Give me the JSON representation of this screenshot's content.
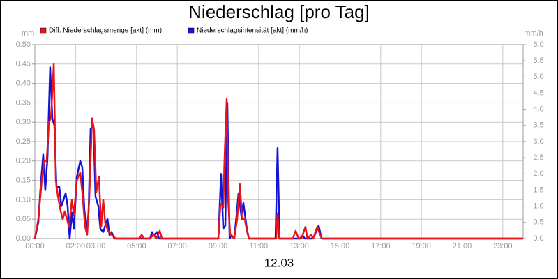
{
  "chart_data": {
    "type": "line",
    "title": "Niederschlag [pro Tag]",
    "x_label": "12.03",
    "y_label": "mm",
    "y2_label": "mm/h",
    "grid": true,
    "xlim": [
      0,
      24
    ],
    "xticks": [
      {
        "value": 0,
        "label": "00:00"
      },
      {
        "value": 2,
        "label": "02:00"
      },
      {
        "value": 3,
        "label": "03:00"
      },
      {
        "value": 5,
        "label": "05:00"
      },
      {
        "value": 7,
        "label": "07:00"
      },
      {
        "value": 9,
        "label": "09:00"
      },
      {
        "value": 11,
        "label": "11:00"
      },
      {
        "value": 13,
        "label": "13:00"
      },
      {
        "value": 15,
        "label": "15:00"
      },
      {
        "value": 17,
        "label": "17:00"
      },
      {
        "value": 19,
        "label": "19:00"
      },
      {
        "value": 21,
        "label": "21:00"
      },
      {
        "value": 23,
        "label": "23:00"
      }
    ],
    "ylim": [
      0,
      0.5
    ],
    "yticks": [
      {
        "value": 0,
        "label": "0.00"
      },
      {
        "value": 0.05,
        "label": "0.05"
      },
      {
        "value": 0.1,
        "label": "0.10"
      },
      {
        "value": 0.15,
        "label": "0.15"
      },
      {
        "value": 0.2,
        "label": "0.20"
      },
      {
        "value": 0.25,
        "label": "0.25"
      },
      {
        "value": 0.3,
        "label": "0.30"
      },
      {
        "value": 0.35,
        "label": "0.35"
      },
      {
        "value": 0.4,
        "label": "0.40"
      },
      {
        "value": 0.45,
        "label": "0.45"
      },
      {
        "value": 0.5,
        "label": "0.50"
      }
    ],
    "y2lim": [
      0,
      6
    ],
    "y2ticks": [
      {
        "value": 0,
        "label": "0.0"
      },
      0.5,
      {
        "value": 1,
        "label": "1.0"
      },
      1.5,
      {
        "value": 2,
        "label": "2.0"
      },
      2.5,
      {
        "value": 3,
        "label": "3.0"
      },
      3.5,
      {
        "value": 4,
        "label": "4.0"
      },
      4.5,
      {
        "value": 5,
        "label": "5.0"
      },
      5.5,
      {
        "value": 6,
        "label": "6.0"
      }
    ],
    "series": [
      {
        "name": "Diff. Niederschlagsmenge [akt] (mm)",
        "color": "#e8141c",
        "x": [
          0,
          0.17,
          0.34,
          0.45,
          0.58,
          0.69,
          0.79,
          0.93,
          1.03,
          1.13,
          1.27,
          1.37,
          1.47,
          1.58,
          1.68,
          1.82,
          1.92,
          2.06,
          2.23,
          2.33,
          2.47,
          2.57,
          2.67,
          2.81,
          2.91,
          3.02,
          3.15,
          3.26,
          3.36,
          3.46,
          3.6,
          3.77,
          3.98,
          5.14,
          5.25,
          5.35,
          5.66,
          5.83,
          5.97,
          6.14,
          6.24,
          9.02,
          9.12,
          9.26,
          9.32,
          9.43,
          9.5,
          9.6,
          9.8,
          9.94,
          10.08,
          10.18,
          10.32,
          10.42,
          10.52,
          11.86,
          11.93,
          12.0,
          12.68,
          12.82,
          12.96,
          13.1,
          13.3,
          13.4,
          13.58,
          13.68,
          13.88,
          14.02,
          14.12,
          24
        ],
        "values": [
          0,
          0.05,
          0.15,
          0.2,
          0.2,
          0.3,
          0.31,
          0.45,
          0.15,
          0.11,
          0.07,
          0.05,
          0.07,
          0.05,
          0.03,
          0.1,
          0.06,
          0.15,
          0.17,
          0.12,
          0.03,
          0.01,
          0.1,
          0.31,
          0.28,
          0.12,
          0.16,
          0.03,
          0.1,
          0.04,
          0.02,
          0.01,
          0,
          0,
          0.01,
          0,
          0,
          0.01,
          0,
          0.02,
          0,
          0,
          0.09,
          0.08,
          0.2,
          0.36,
          0.1,
          0.01,
          0,
          0.05,
          0.14,
          0.05,
          0.05,
          0.02,
          0,
          0,
          0.065,
          0,
          0,
          0.02,
          0,
          0,
          0.03,
          0,
          0.01,
          0,
          0.03,
          0.01,
          0,
          0
        ]
      },
      {
        "name": "Niederschlagsintensität [akt] (mm/h)",
        "color": "#1414d8",
        "axis": "y2",
        "x": [
          0,
          0.17,
          0.27,
          0.41,
          0.51,
          0.62,
          0.75,
          0.86,
          0.96,
          1.06,
          1.2,
          1.3,
          1.41,
          1.51,
          1.61,
          1.71,
          1.82,
          1.92,
          2.06,
          2.23,
          2.33,
          2.43,
          2.54,
          2.64,
          2.74,
          2.88,
          2.98,
          3.12,
          3.22,
          3.36,
          3.46,
          3.57,
          3.67,
          3.77,
          3.91,
          5.66,
          5.76,
          5.86,
          6.0,
          6.1,
          9.02,
          9.15,
          9.26,
          9.36,
          9.46,
          9.57,
          9.67,
          9.8,
          9.91,
          10.01,
          10.15,
          10.25,
          10.42,
          10.52,
          11.83,
          11.93,
          12.03,
          13.03,
          13.16,
          13.27,
          13.61,
          13.75,
          13.95,
          14.09,
          24
        ],
        "values": [
          0,
          0.5,
          1.5,
          2.6,
          1.5,
          2.5,
          5.3,
          3.7,
          3.5,
          1.6,
          1.6,
          1.0,
          1.2,
          1.4,
          1.0,
          0,
          0.8,
          0.3,
          1.9,
          2.4,
          2.2,
          0.9,
          0.3,
          0.8,
          3.4,
          3.5,
          1.3,
          1.0,
          0.3,
          0.2,
          0.4,
          0.6,
          0.1,
          0.2,
          0,
          0,
          0.2,
          0.1,
          0.2,
          0,
          0,
          2.0,
          0.3,
          0.4,
          4.2,
          0,
          0.1,
          0,
          0.7,
          1.4,
          0.7,
          1.1,
          0.3,
          0,
          0,
          2.8,
          0,
          0,
          0.1,
          0,
          0,
          0.1,
          0.4,
          0,
          0
        ]
      }
    ]
  }
}
